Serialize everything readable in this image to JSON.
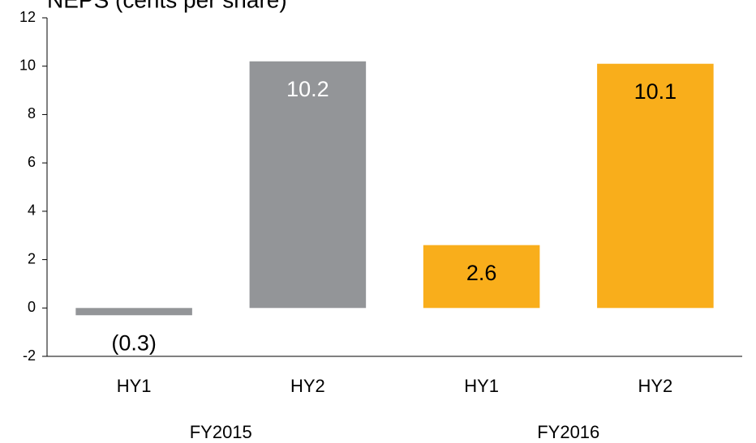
{
  "chart_data": {
    "type": "bar",
    "title": "NEPS (cents per share)",
    "categories": [
      "HY1",
      "HY2",
      "HY1",
      "HY2"
    ],
    "groups": [
      {
        "name": "FY2015",
        "count": 2
      },
      {
        "name": "FY2016",
        "count": 2
      }
    ],
    "values": [
      -0.3,
      10.2,
      2.6,
      10.1
    ],
    "value_labels": [
      "(0.3)",
      "10.2",
      "2.6",
      "10.1"
    ],
    "colors": [
      "#939598",
      "#939598",
      "#f9ae1b",
      "#f9ae1b"
    ],
    "ylim": [
      -2,
      12
    ],
    "yticks": [
      -2,
      0,
      2,
      4,
      6,
      8,
      10,
      12
    ],
    "grid": false
  }
}
